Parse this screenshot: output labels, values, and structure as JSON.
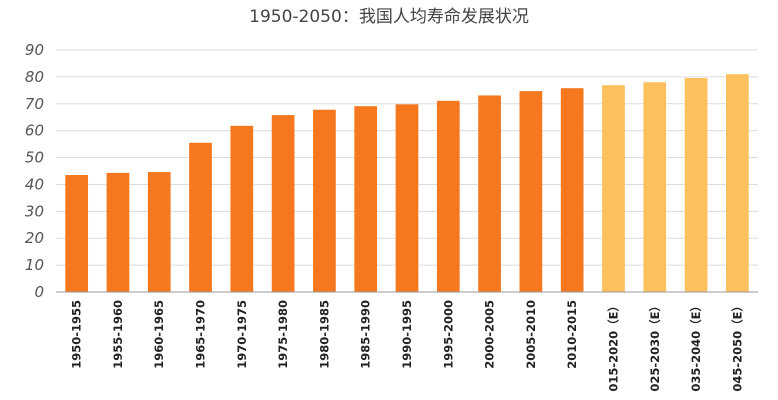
{
  "chart_data": {
    "type": "bar",
    "title": "1950-2050：我国人均寿命发展状况",
    "xlabel": "",
    "ylabel": "",
    "ylim": [
      0,
      90
    ],
    "yticks": [
      0,
      10,
      20,
      30,
      40,
      50,
      60,
      70,
      80,
      90
    ],
    "grid": true,
    "categories": [
      "1950-1955",
      "1955-1960",
      "1960-1965",
      "1965-1970",
      "1970-1975",
      "1975-1980",
      "1980-1985",
      "1985-1990",
      "1990-1995",
      "1995-2000",
      "2000-2005",
      "2005-2010",
      "2010-2015",
      "015-2020（E）",
      "025-2030（E）",
      "035-2040（E）",
      "045-2050（E）"
    ],
    "values": [
      43.5,
      44.3,
      44.6,
      55.5,
      61.8,
      65.8,
      67.8,
      69.1,
      69.8,
      71.1,
      73.1,
      74.7,
      75.8,
      76.9,
      78.0,
      79.6,
      81.0
    ],
    "projected": [
      false,
      false,
      false,
      false,
      false,
      false,
      false,
      false,
      false,
      false,
      false,
      false,
      false,
      true,
      true,
      true,
      true
    ],
    "colors": {
      "actual": "#f5781e",
      "projected": "#fcc05c"
    }
  }
}
